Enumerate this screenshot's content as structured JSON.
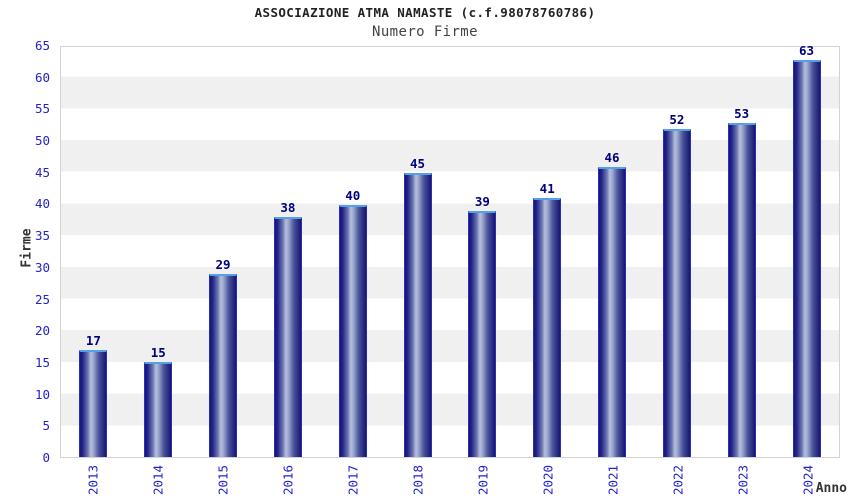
{
  "chart_data": {
    "type": "bar",
    "title": "ASSOCIAZIONE ATMA NAMASTE (c.f.98078760786)",
    "subtitle": "Numero Firme",
    "xlabel": "Anno",
    "ylabel": "Firme",
    "categories": [
      "2013",
      "2014",
      "2015",
      "2016",
      "2017",
      "2018",
      "2019",
      "2020",
      "2021",
      "2022",
      "2023",
      "2024"
    ],
    "values": [
      17,
      15,
      29,
      38,
      40,
      45,
      39,
      41,
      46,
      52,
      53,
      63
    ],
    "ylim": [
      0,
      65
    ],
    "ytick_step": 5,
    "grid": "horizontal-alternating-bands",
    "legend": "none",
    "value_labels_shown": true,
    "colors": {
      "background": "#ffffff",
      "band_gray": "#f0f0f0",
      "plot_border": "#d3d3d3",
      "bar_dark": "#161670",
      "bar_mid": "#23238a",
      "bar_highlight": "#b6bfdd",
      "bar_border_side": "#2b2bc0",
      "bar_border_top": "#56a0e6",
      "tick_label": "#2323cc",
      "value_label": "#000080",
      "title_color": "#222222",
      "subtitle_color": "#444444",
      "axis_title_color": "#333333"
    }
  }
}
